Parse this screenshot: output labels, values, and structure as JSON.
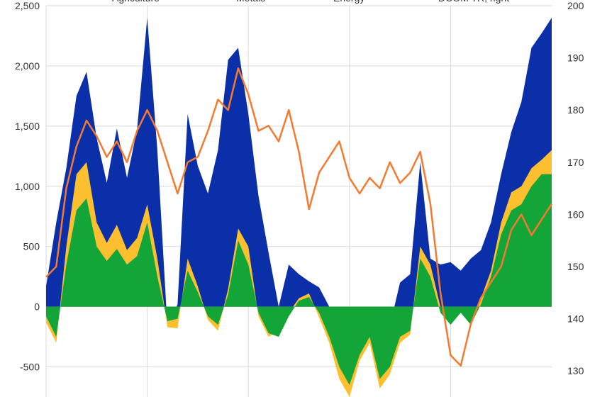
{
  "chart_data": {
    "type": "area",
    "legend": {
      "placement": "top",
      "entries": [
        "Agriculture",
        "Metals",
        "Energy",
        "DCOM TR, right"
      ]
    },
    "y_left": {
      "min": -750,
      "max": 2500,
      "ticks": [
        2500,
        2000,
        1500,
        1000,
        500,
        0,
        -500
      ],
      "tick_labels": [
        "2,500",
        "2,000",
        "1,500",
        "1,000",
        "500",
        "0",
        "-500"
      ]
    },
    "y_right": {
      "min": 125,
      "max": 200,
      "ticks": [
        200,
        190,
        180,
        170,
        160,
        150,
        140,
        130
      ],
      "tick_labels": [
        "200",
        "190",
        "180",
        "170",
        "160",
        "150",
        "140",
        "130"
      ]
    },
    "x": {
      "min": 0,
      "max": 100,
      "gridlines": [
        0,
        20,
        40,
        60,
        80
      ]
    },
    "grid": {
      "horizontal": true,
      "vertical": true
    },
    "colors": {
      "agriculture": "#13a538",
      "metals": "#fbbf2f",
      "energy": "#0a2fa8",
      "dcom": "#f47a2f",
      "grid": "#d9d9d9",
      "text": "#333333"
    },
    "series": [
      {
        "name": "Agriculture",
        "x": [
          0,
          2,
          4,
          6,
          8,
          10,
          12,
          14,
          16,
          18,
          20,
          22,
          24,
          26,
          28,
          30,
          32,
          34,
          36,
          38,
          40,
          42,
          44,
          46,
          48,
          50,
          52,
          54,
          56,
          58,
          60,
          62,
          64,
          66,
          68,
          70,
          72,
          74,
          76,
          78,
          80,
          82,
          84,
          86,
          88,
          90,
          92,
          94,
          96,
          98,
          100
        ],
        "values": [
          -80,
          -250,
          350,
          800,
          900,
          500,
          380,
          480,
          350,
          420,
          700,
          250,
          -120,
          -100,
          300,
          120,
          -80,
          -150,
          100,
          550,
          350,
          -50,
          -220,
          -250,
          -80,
          50,
          80,
          -50,
          -250,
          -500,
          -650,
          -400,
          -250,
          -600,
          -500,
          -250,
          -200,
          400,
          250,
          -50,
          -150,
          -50,
          -150,
          20,
          250,
          600,
          800,
          850,
          1000,
          1100,
          1100
        ]
      },
      {
        "name": "Metals",
        "x": [
          0,
          2,
          4,
          6,
          8,
          10,
          12,
          14,
          16,
          18,
          20,
          22,
          24,
          26,
          28,
          30,
          32,
          34,
          36,
          38,
          40,
          42,
          44,
          46,
          48,
          50,
          52,
          54,
          56,
          58,
          60,
          62,
          64,
          66,
          68,
          70,
          72,
          74,
          76,
          78,
          80,
          82,
          84,
          86,
          88,
          90,
          92,
          94,
          96,
          98,
          100
        ],
        "values": [
          -50,
          -50,
          150,
          300,
          300,
          200,
          150,
          200,
          120,
          150,
          150,
          150,
          -50,
          -80,
          100,
          50,
          -30,
          -50,
          50,
          100,
          150,
          -30,
          -30,
          50,
          30,
          20,
          30,
          -40,
          -50,
          -100,
          -100,
          -50,
          -50,
          -80,
          -60,
          -50,
          -30,
          100,
          100,
          50,
          20,
          50,
          50,
          50,
          50,
          100,
          150,
          150,
          150,
          120,
          200
        ]
      },
      {
        "name": "Energy",
        "x": [
          0,
          2,
          4,
          6,
          8,
          10,
          12,
          14,
          16,
          18,
          20,
          22,
          24,
          26,
          28,
          30,
          32,
          34,
          36,
          38,
          40,
          42,
          44,
          46,
          48,
          50,
          52,
          54,
          56,
          58,
          60,
          62,
          64,
          66,
          68,
          70,
          72,
          74,
          76,
          78,
          80,
          82,
          84,
          86,
          88,
          90,
          92,
          94,
          96,
          98,
          100
        ],
        "values": [
          300,
          1000,
          650,
          650,
          750,
          700,
          500,
          800,
          600,
          900,
          1550,
          900,
          0,
          200,
          1200,
          1000,
          1050,
          1500,
          1900,
          1500,
          1100,
          1000,
          700,
          200,
          400,
          200,
          100,
          250,
          300,
          300,
          650,
          400,
          250,
          500,
          400,
          500,
          500,
          700,
          50,
          350,
          500,
          300,
          500,
          400,
          400,
          400,
          500,
          700,
          1000,
          1050,
          1100
        ]
      },
      {
        "name": "DCOM TR, right",
        "x": [
          0,
          2,
          4,
          6,
          8,
          10,
          12,
          14,
          16,
          18,
          20,
          22,
          24,
          26,
          28,
          30,
          32,
          34,
          36,
          38,
          40,
          42,
          44,
          46,
          48,
          50,
          52,
          54,
          56,
          58,
          60,
          62,
          64,
          66,
          68,
          70,
          72,
          74,
          76,
          78,
          80,
          82,
          84,
          86,
          88,
          90,
          92,
          94,
          96,
          98,
          100
        ],
        "values": [
          148,
          150,
          165,
          173,
          178,
          175,
          171,
          174,
          170,
          176,
          180,
          176,
          170,
          164,
          170,
          171,
          176,
          182,
          180,
          188,
          183,
          176,
          177,
          174,
          180,
          172,
          161,
          168,
          171,
          174,
          167,
          164,
          167,
          165,
          170,
          166,
          168,
          172,
          162,
          145,
          133,
          131,
          139,
          144,
          147,
          150,
          157,
          160,
          156,
          159,
          162
        ]
      }
    ]
  }
}
